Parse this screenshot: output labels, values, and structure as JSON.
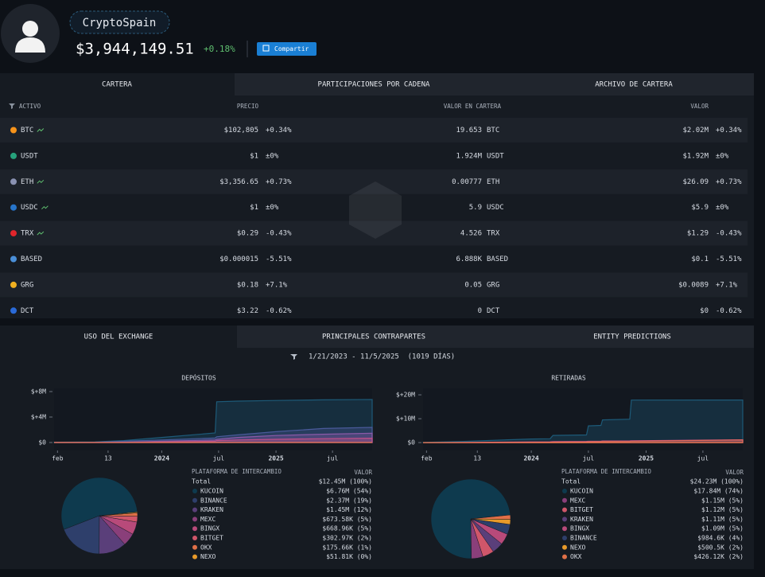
{
  "header": {
    "name": "CryptoSpain",
    "balance": "$3,944,149.51",
    "change": "+0.18%",
    "share_button": "Compartir"
  },
  "portfolio": {
    "tabs": [
      "CARTERA",
      "PARTICIPACIONES POR CADENA",
      "ARCHIVO DE CARTERA"
    ],
    "columns": [
      "ACTIVO",
      "PRECIO",
      "VALOR EN CARTERA",
      "VALOR"
    ],
    "rows": [
      {
        "asset": "BTC",
        "icon_color": "#f7931a",
        "trend": true,
        "price": "$102,805",
        "price_change": "+0.34%",
        "holdings": "19.653",
        "unit": "BTC",
        "value": "$2.02M",
        "value_change": "+0.34%"
      },
      {
        "asset": "USDT",
        "icon_color": "#26a17b",
        "trend": false,
        "price": "$1",
        "price_change": "±0%",
        "holdings": "1.924M",
        "unit": "USDT",
        "value": "$1.92M",
        "value_change": "±0%"
      },
      {
        "asset": "ETH",
        "icon_color": "#8a92b2",
        "trend": true,
        "price": "$3,356.65",
        "price_change": "+0.73%",
        "holdings": "0.00777",
        "unit": "ETH",
        "value": "$26.09",
        "value_change": "+0.73%"
      },
      {
        "asset": "USDC",
        "icon_color": "#2775ca",
        "trend": true,
        "price": "$1",
        "price_change": "±0%",
        "holdings": "5.9",
        "unit": "USDC",
        "value": "$5.9",
        "value_change": "±0%"
      },
      {
        "asset": "TRX",
        "icon_color": "#e0252b",
        "trend": true,
        "price": "$0.29",
        "price_change": "-0.43%",
        "holdings": "4.526",
        "unit": "TRX",
        "value": "$1.29",
        "value_change": "-0.43%"
      },
      {
        "asset": "BASED",
        "icon_color": "#4a8fd8",
        "trend": false,
        "price": "$0.000015",
        "price_change": "-5.51%",
        "holdings": "6.888K",
        "unit": "BASED",
        "value": "$0.1",
        "value_change": "-5.51%"
      },
      {
        "asset": "GRG",
        "icon_color": "#f0b020",
        "trend": false,
        "price": "$0.18",
        "price_change": "+7.1%",
        "holdings": "0.05",
        "unit": "GRG",
        "value": "$0.0089",
        "value_change": "+7.1%"
      },
      {
        "asset": "DCT",
        "icon_color": "#2a6ad8",
        "trend": false,
        "price": "$3.22",
        "price_change": "-0.62%",
        "holdings": "0",
        "unit": "DCT",
        "value": "$0",
        "value_change": "-0.62%"
      }
    ]
  },
  "exchange": {
    "tabs": [
      "USO DEL EXCHANGE",
      "PRINCIPALES CONTRAPARTES",
      "ENTITY PREDICTIONS"
    ],
    "date_range": "1/21/2023 - 11/5/2025  (1019 DÍAS)"
  },
  "chart_data": [
    {
      "type": "area",
      "title": "DEPÓSITOS",
      "x": [
        "2023-01-21",
        "2023-06-01",
        "2023-09-01",
        "2024-01-01",
        "2024-06-20",
        "2024-06-25",
        "2024-09-01",
        "2025-01-01",
        "2025-06-01",
        "2025-11-05"
      ],
      "xlim": [
        "2023-01-21",
        "2025-11-05"
      ],
      "xticks": [
        {
          "value": "2023-02-01",
          "label": "feb"
        },
        {
          "value": "2023-07-13",
          "label": "13"
        },
        {
          "value": "2024-01-01",
          "label": "2024"
        },
        {
          "value": "2024-07-01",
          "label": "jul"
        },
        {
          "value": "2025-01-01",
          "label": "2025"
        },
        {
          "value": "2025-07-01",
          "label": "jul"
        }
      ],
      "ylim": [
        -1250000,
        8500000
      ],
      "yticks": [
        {
          "value": 8000000,
          "label": "$+8M"
        },
        {
          "value": 4000000,
          "label": "$+4M"
        },
        {
          "value": 0,
          "label": "$0"
        }
      ],
      "series": [
        {
          "color": "#1d5a78",
          "values": [
            50000,
            100000,
            300000,
            800000,
            1500000,
            6400000,
            6500000,
            6600000,
            6700000,
            6760000
          ]
        },
        {
          "color": "#4a5a9a",
          "values": [
            0,
            50000,
            200000,
            400000,
            700000,
            900000,
            1200000,
            1700000,
            2200000,
            2370000
          ]
        },
        {
          "color": "#8a5aa8",
          "values": [
            0,
            0,
            50000,
            200000,
            400000,
            500000,
            800000,
            1100000,
            1300000,
            1450000
          ]
        },
        {
          "color": "#c0508a",
          "values": [
            0,
            0,
            0,
            100000,
            200000,
            300000,
            400000,
            500000,
            600000,
            670000
          ]
        }
      ]
    },
    {
      "type": "pie",
      "legend_title": "PLATAFORMA DE INTERCAMBIO",
      "value_title": "VALOR",
      "total_label": "Total",
      "total_value_label": "$12.45M (100%)",
      "categories": [
        "KUCOIN",
        "BINANCE",
        "KRAKEN",
        "MEXC",
        "BINGX",
        "BITGET",
        "OKX",
        "NEXO"
      ],
      "values": [
        6760000,
        2370000,
        1450000,
        673580,
        668960,
        302970,
        175660,
        51810
      ],
      "value_labels": [
        "$6.76M (54%)",
        "$2.37M (19%)",
        "$1.45M (12%)",
        "$673.58K (5%)",
        "$668.96K (5%)",
        "$302.97K (2%)",
        "$175.66K (1%)",
        "$51.81K (0%)"
      ],
      "colors": [
        "#0e3a4e",
        "#2e3f6b",
        "#5a3f7a",
        "#8a3f7a",
        "#b84a7a",
        "#d0566a",
        "#e07048",
        "#e89a2a"
      ]
    },
    {
      "type": "area",
      "title": "RETIRADAS",
      "x": [
        "2023-01-21",
        "2023-06-01",
        "2024-01-01",
        "2024-03-01",
        "2024-03-10",
        "2024-06-25",
        "2024-07-01",
        "2024-08-10",
        "2024-08-15",
        "2024-11-10",
        "2024-11-15",
        "2025-11-05"
      ],
      "xlim": [
        "2023-01-21",
        "2025-11-05"
      ],
      "xticks": [
        {
          "value": "2023-02-01",
          "label": "feb"
        },
        {
          "value": "2023-07-13",
          "label": "13"
        },
        {
          "value": "2024-01-01",
          "label": "2024"
        },
        {
          "value": "2024-07-01",
          "label": "jul"
        },
        {
          "value": "2025-01-01",
          "label": "2025"
        },
        {
          "value": "2025-07-01",
          "label": "jul"
        }
      ],
      "ylim": [
        -3300000,
        22700000
      ],
      "yticks": [
        {
          "value": 20000000,
          "label": "$+20M"
        },
        {
          "value": 10000000,
          "label": "$+10M"
        },
        {
          "value": 0,
          "label": "$0"
        }
      ],
      "series": [
        {
          "color": "#1d5a78",
          "values": [
            100000,
            500000,
            1500000,
            1600000,
            3000000,
            3200000,
            7000000,
            7200000,
            9500000,
            9800000,
            17800000,
            17840000
          ]
        },
        {
          "color": "#c0508a",
          "values": [
            0,
            100000,
            300000,
            350000,
            400000,
            500000,
            550000,
            600000,
            650000,
            700000,
            750000,
            1150000
          ]
        },
        {
          "color": "#e06a5a",
          "values": [
            0,
            0,
            100000,
            150000,
            200000,
            300000,
            350000,
            400000,
            450000,
            500000,
            550000,
            1120000
          ]
        }
      ]
    },
    {
      "type": "pie",
      "legend_title": "PLATAFORMA DE INTERCAMBIO",
      "value_title": "VALOR",
      "total_label": "Total",
      "total_value_label": "$24.23M (100%)",
      "categories": [
        "KUCOIN",
        "MEXC",
        "BITGET",
        "KRAKEN",
        "BINGX",
        "BINANCE",
        "NEXO",
        "OKX"
      ],
      "values": [
        17840000,
        1150000,
        1120000,
        1110000,
        1090000,
        984600,
        500500,
        426120
      ],
      "value_labels": [
        "$17.84M (74%)",
        "$1.15M (5%)",
        "$1.12M (5%)",
        "$1.11M (5%)",
        "$1.09M (5%)",
        "$984.6K (4%)",
        "$500.5K (2%)",
        "$426.12K (2%)"
      ],
      "colors": [
        "#0e3a4e",
        "#8a3f7a",
        "#d0566a",
        "#5a3f7a",
        "#b84a7a",
        "#2e3f6b",
        "#e89a2a",
        "#e07048"
      ]
    }
  ]
}
